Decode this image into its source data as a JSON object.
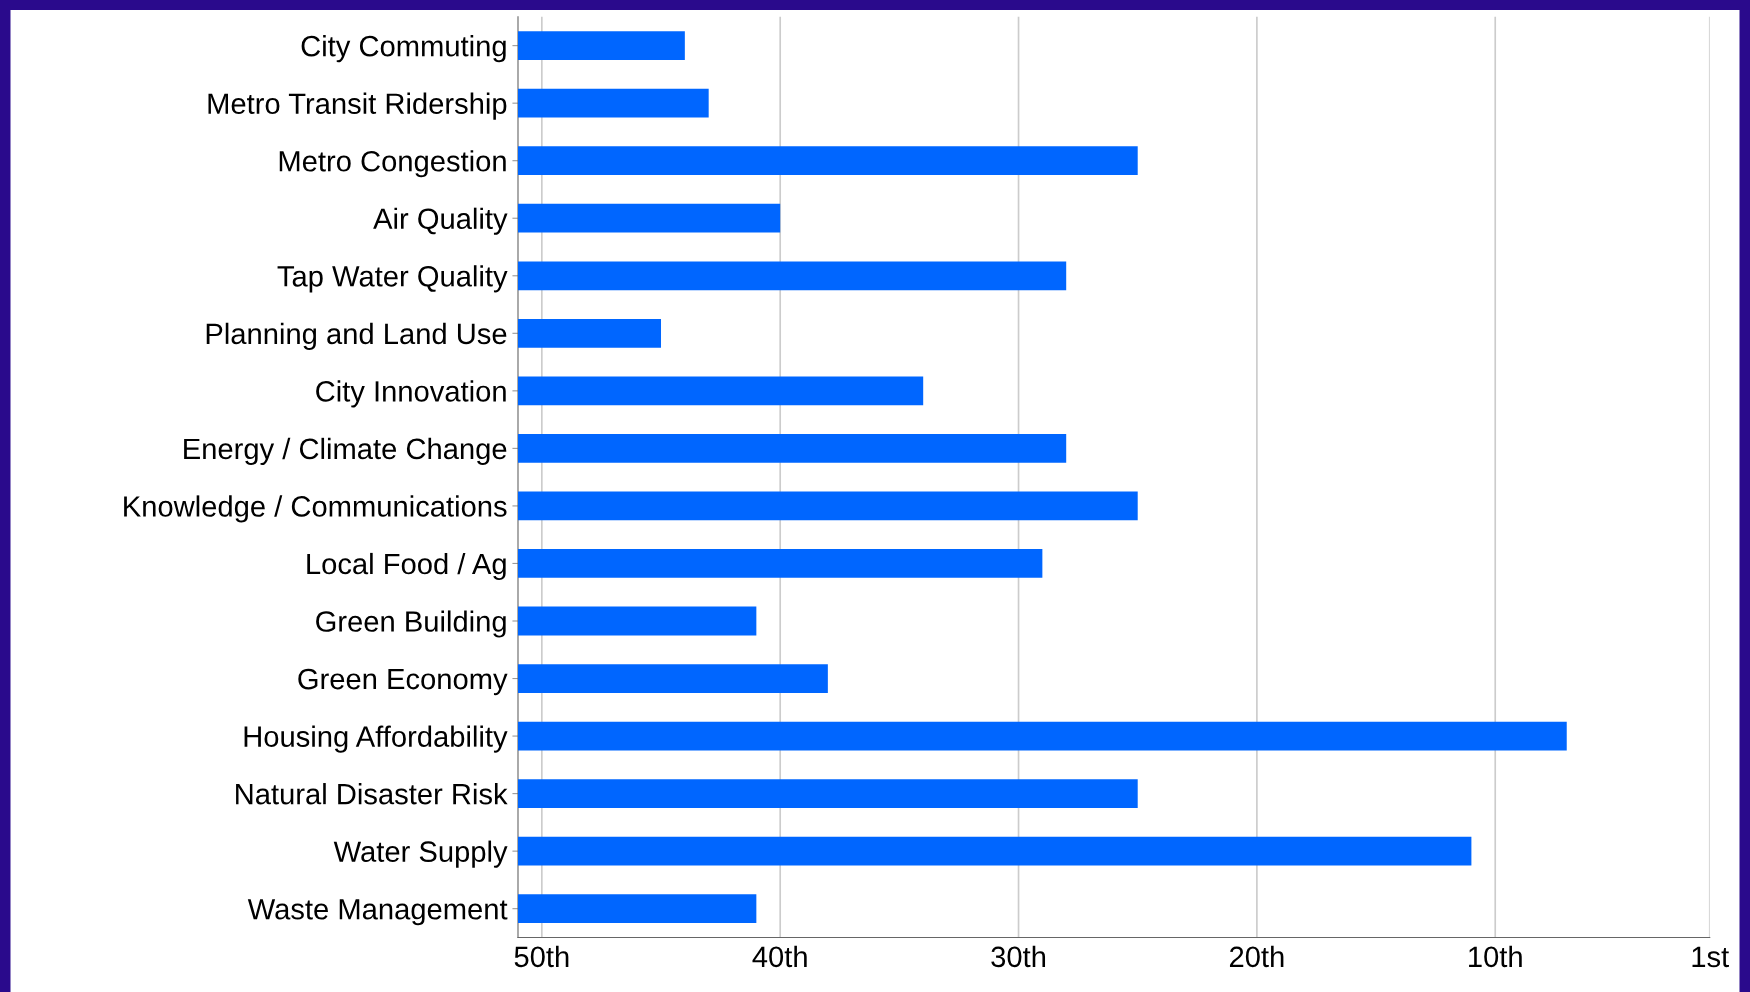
{
  "chart_data": {
    "type": "bar",
    "orientation": "horizontal",
    "categories": [
      "City Commuting",
      "Metro Transit Ridership",
      "Metro Congestion",
      "Air Quality",
      "Tap Water Quality",
      "Planning and Land Use",
      "City Innovation",
      "Energy / Climate Change",
      "Knowledge / Communications",
      "Local Food / Ag",
      "Green Building",
      "Green Economy",
      "Housing Affordability",
      "Natural Disaster Risk",
      "Water Supply",
      "Waste Management"
    ],
    "values": [
      -7,
      -8,
      -26,
      -11,
      -23,
      -6,
      -17,
      -23,
      -26,
      -22,
      -10,
      -13,
      -44,
      -26,
      -40,
      -10
    ],
    "base": [
      51,
      51,
      51,
      51,
      51,
      51,
      51,
      51,
      51,
      51,
      51,
      51,
      51,
      51,
      51,
      51
    ],
    "color": "#0066ff",
    "xlim": [
      51,
      1
    ],
    "xticks": [
      {
        "value": 50,
        "label": "50th"
      },
      {
        "value": 40,
        "label": "40th"
      },
      {
        "value": 30,
        "label": "30th"
      },
      {
        "value": 20,
        "label": "20th"
      },
      {
        "value": 10,
        "label": "10th"
      },
      {
        "value": 1,
        "label": "1st"
      }
    ],
    "grid": "x",
    "legend": false
  }
}
